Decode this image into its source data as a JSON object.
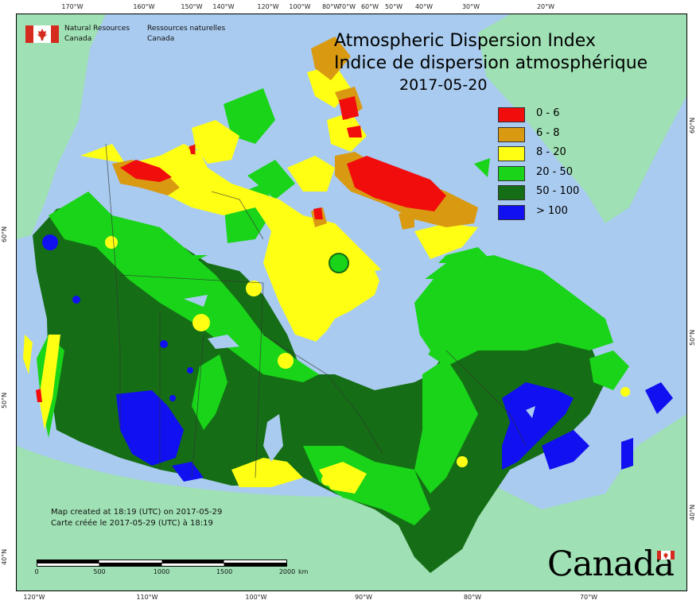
{
  "org": {
    "en_line1": "Natural Resources",
    "en_line2": "Canada",
    "fr_line1": "Ressources naturelles",
    "fr_line2": "Canada",
    "flag_icon": "canada-flag-icon"
  },
  "title": {
    "en": "Atmospheric Dispersion Index",
    "fr": "Indice de dispersion atmosphérique",
    "date": "2017-05-20"
  },
  "legend": [
    {
      "label": "0 - 6",
      "color": "#f20d0d"
    },
    {
      "label": "6 - 8",
      "color": "#d99a12"
    },
    {
      "label": "8 - 20",
      "color": "#ffff14"
    },
    {
      "label": "20 - 50",
      "color": "#19d419"
    },
    {
      "label": "50 - 100",
      "color": "#156e15"
    },
    {
      "label": "> 100",
      "color": "#1010f0"
    }
  ],
  "credit": {
    "en": "Map created at 18:19 (UTC) on 2017-05-29",
    "fr": "Carte créée le 2017-05-29 (UTC) à 18:19"
  },
  "scale_bar": {
    "labels": [
      "0",
      "500",
      "1000",
      "1500",
      "2000"
    ],
    "unit": "km"
  },
  "wordmark": "Canada",
  "graticule": {
    "top": [
      "170°W",
      "160°W",
      "150°W",
      "140°W",
      "120°W",
      "100°W",
      "80°W",
      "70°W",
      "60°W",
      "50°W",
      "40°W",
      "30°W",
      "20°W"
    ],
    "bottom": [
      "120°W",
      "110°W",
      "100°W",
      "90°W",
      "80°W",
      "70°W"
    ],
    "left": [
      "60°N",
      "50°N",
      "40°N"
    ],
    "right": [
      "60°N",
      "50°N",
      "40°N"
    ]
  },
  "colors": {
    "ocean": "#a9cbef",
    "foreign_land": "#9fe0b4",
    "boundary": "#333333"
  }
}
